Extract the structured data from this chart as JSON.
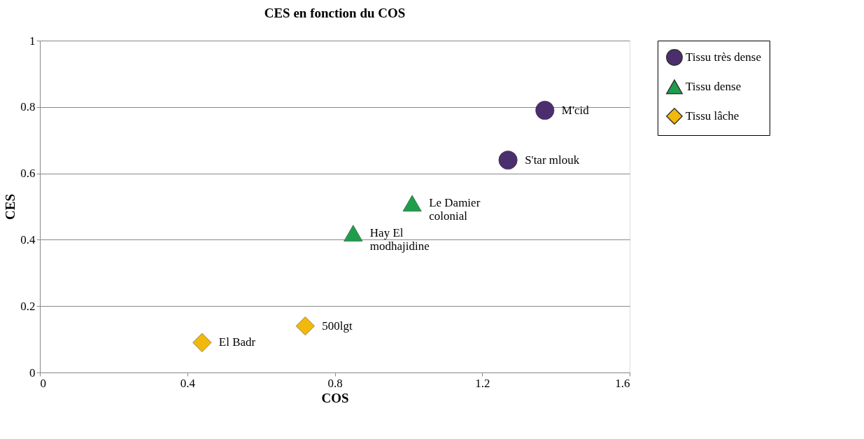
{
  "chart_data": {
    "type": "scatter",
    "title": "CES en fonction du COS",
    "xlabel": "COS",
    "ylabel": "CES",
    "xlim": [
      0,
      1.6
    ],
    "xticks": [
      0,
      0.4,
      0.8,
      1.2,
      1.6
    ],
    "ylim": [
      0,
      1
    ],
    "yticks": [
      0,
      0.2,
      0.4,
      0.6,
      0.8,
      1
    ],
    "grid": "y",
    "legend": "right",
    "series": [
      {
        "name": "Tissu très dense",
        "color": "#4b2e6e",
        "marker": "circle",
        "x": [
          1.37,
          1.27
        ],
        "values": [
          0.79,
          0.64
        ]
      },
      {
        "name": "Tissu dense",
        "color": "#1e9e4a",
        "marker": "triangle",
        "x": [
          1.01,
          0.85
        ],
        "values": [
          0.51,
          0.42
        ]
      },
      {
        "name": "Tissu lâche",
        "color": "#f2b90c",
        "marker": "diamond",
        "x": [
          0.72,
          0.44
        ],
        "values": [
          0.14,
          0.09
        ]
      }
    ],
    "annotations": [
      {
        "text": "M'cid",
        "x": 1.37,
        "y": 0.79
      },
      {
        "text": "S'tar mlouk",
        "x": 1.27,
        "y": 0.64
      },
      {
        "text": "Le Damier\ncolonial",
        "x": 1.01,
        "y": 0.51
      },
      {
        "text": "Hay El\nmodhajidine",
        "x": 0.85,
        "y": 0.42
      },
      {
        "text": "500lgt",
        "x": 0.72,
        "y": 0.14
      },
      {
        "text": "El Badr",
        "x": 0.44,
        "y": 0.09
      }
    ]
  }
}
